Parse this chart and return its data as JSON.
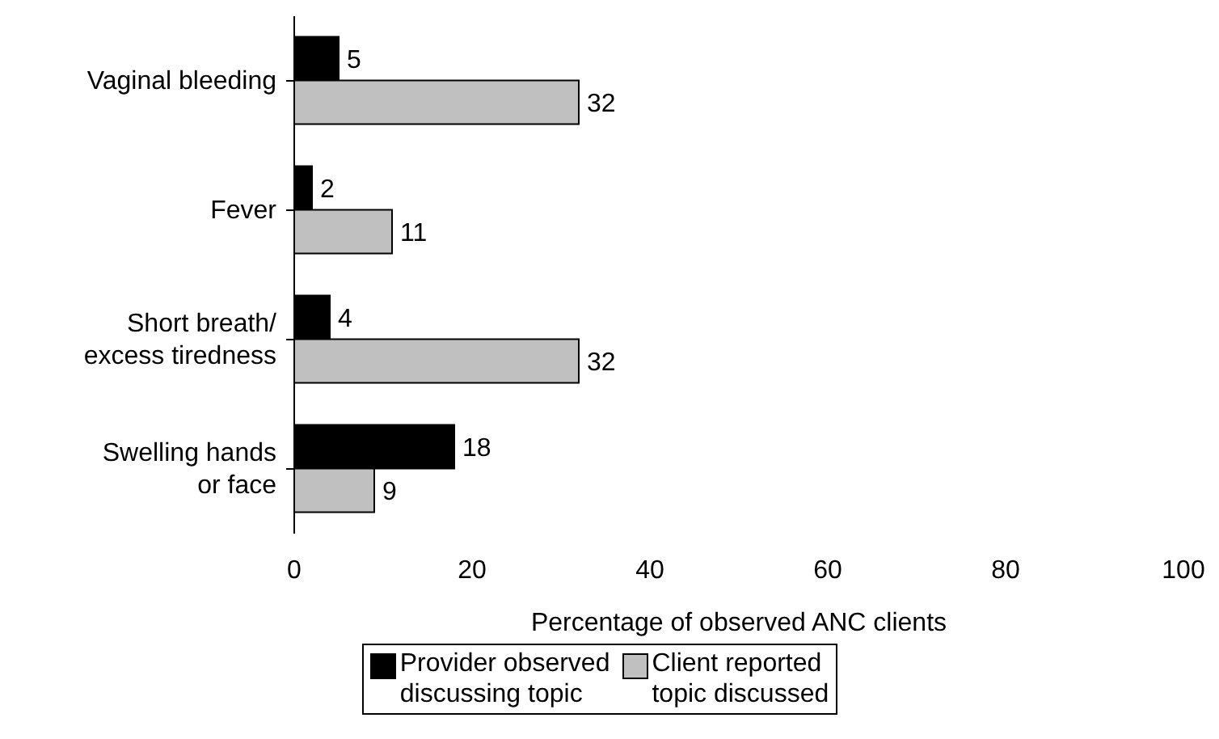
{
  "chart_data": {
    "type": "bar",
    "orientation": "horizontal",
    "categories": [
      "Vaginal bleeding",
      "Fever",
      "Short breath/ excess tiredness",
      "Swelling hands or face"
    ],
    "series": [
      {
        "name": "Provider observed discussing topic",
        "color": "#000000",
        "values": [
          5,
          2,
          4,
          18
        ]
      },
      {
        "name": "Client reported topic discussed",
        "color": "#c0c0c0",
        "values": [
          32,
          11,
          32,
          9
        ]
      }
    ],
    "xlabel": "Percentage of observed ANC clients",
    "xlim": [
      0,
      100
    ],
    "xticks": [
      0,
      20,
      40,
      60,
      80,
      100
    ],
    "legend": "bottom",
    "data_labels": true
  }
}
